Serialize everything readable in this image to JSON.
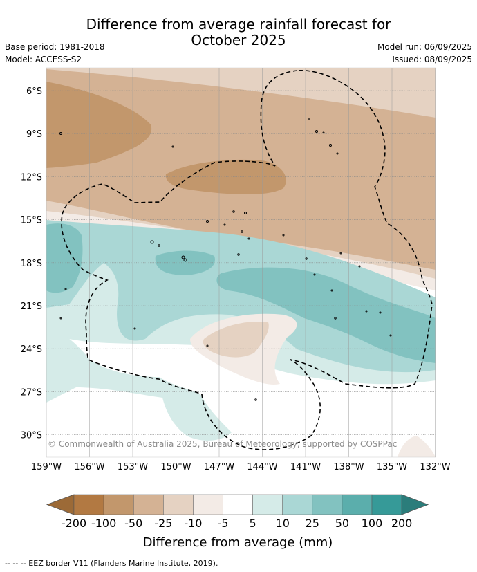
{
  "title_line1": "Difference from average rainfall forecast for",
  "title_line2": "October 2025",
  "base_period": "Base period: 1981-2018",
  "model": "Model: ACCESS-S2",
  "model_run": "Model run: 06/09/2025",
  "issued": "Issued: 08/09/2025",
  "copyright": "© Commonwealth of Australia 2025, Bureau of Meteorology, supported by COSPPac",
  "lat_labels": [
    "6°S",
    "9°S",
    "12°S",
    "15°S",
    "18°S",
    "21°S",
    "24°S",
    "27°S",
    "30°S"
  ],
  "lon_labels": [
    "159°W",
    "156°W",
    "153°W",
    "150°W",
    "147°W",
    "144°W",
    "141°W",
    "138°W",
    "135°W",
    "132°W"
  ],
  "colorbar": {
    "labels": [
      "-200",
      "-100",
      "-50",
      "-25",
      "-10",
      "-5",
      "5",
      "10",
      "25",
      "50",
      "100",
      "200"
    ],
    "colors": [
      "#9c6a37",
      "#b27942",
      "#c2976c",
      "#d4b294",
      "#e5d2c2",
      "#f3ebe6",
      "#ffffff",
      "#d5ebe8",
      "#aad7d5",
      "#82c2c0",
      "#5baeac",
      "#369a98",
      "#2b7d7b"
    ],
    "title": "Difference from average (mm)"
  },
  "legend_eez": "--  --  -- EEZ border V11 (Flanders Marine Institute, 2019)."
}
